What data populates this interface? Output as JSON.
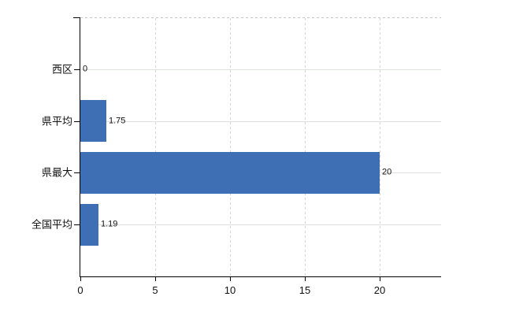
{
  "chart_data": {
    "type": "bar",
    "orientation": "horizontal",
    "title": "",
    "xlabel": "",
    "ylabel": "",
    "categories": [
      "西区",
      "県平均",
      "県最大",
      "全国平均"
    ],
    "values": [
      0,
      1.75,
      20,
      1.19
    ],
    "value_labels": [
      "0",
      "1.75",
      "20",
      "1.19"
    ],
    "x_ticks": [
      0,
      5,
      10,
      15,
      20
    ],
    "x_tick_labels": [
      "0",
      "5",
      "10",
      "15",
      "20"
    ],
    "xlim": [
      0,
      24.1
    ],
    "grid": true,
    "legend": false,
    "colors": {
      "bar": "#3e6fb4",
      "h_gridline": "#dce2db",
      "v_gridline": "#d3d3d3",
      "top_border": "#c6c6c6",
      "axis": "#000000",
      "text": "#111111",
      "background": "#ffffff"
    }
  }
}
